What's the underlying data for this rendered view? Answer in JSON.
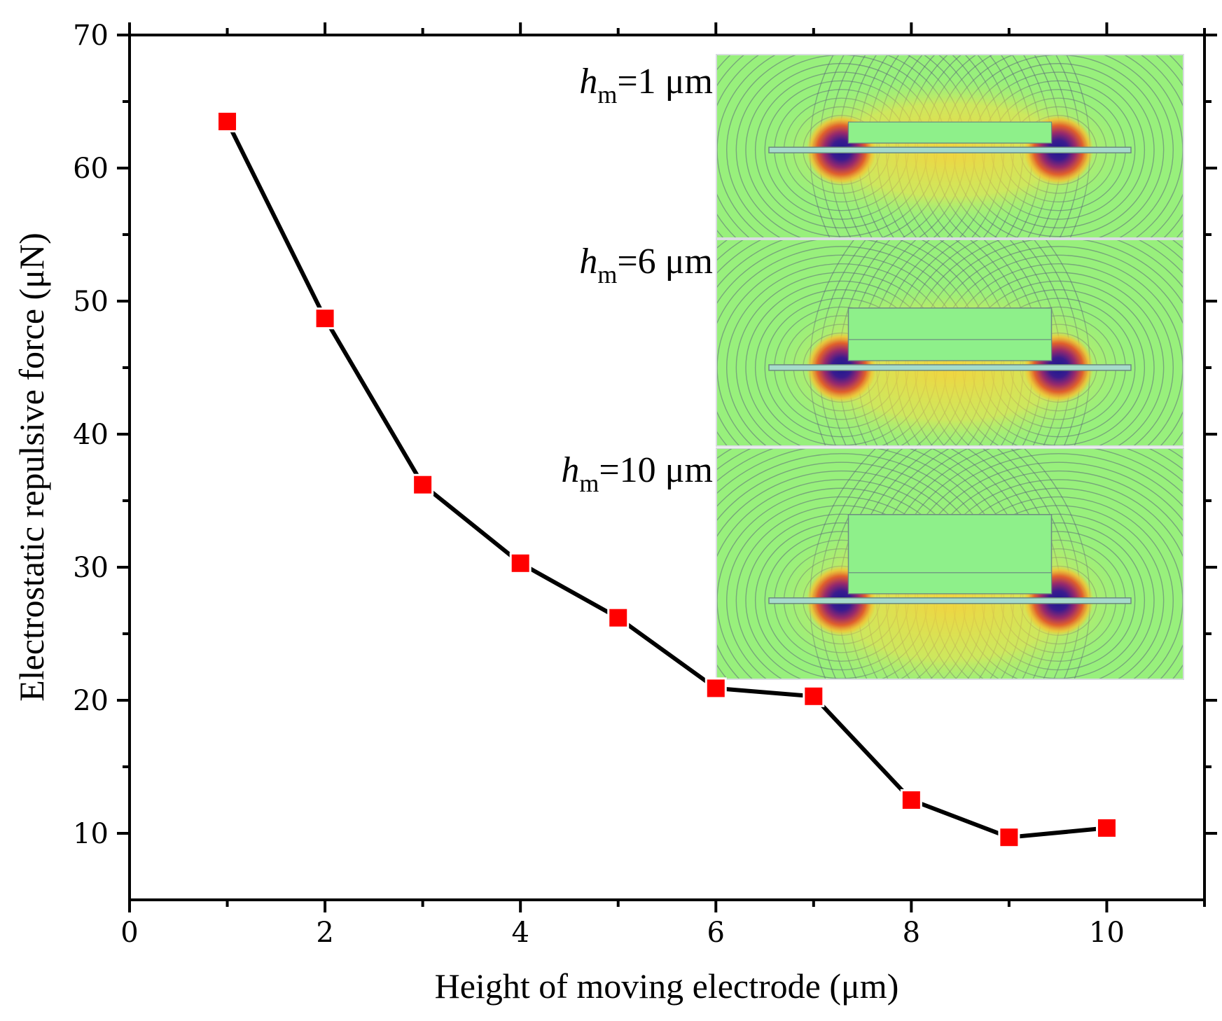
{
  "chart_data": {
    "type": "line",
    "xlabel": "Height of moving electrode (μm)",
    "ylabel": "Electrostatic repulsive force (μN)",
    "xlim": [
      0,
      11
    ],
    "ylim": [
      5,
      70
    ],
    "xticks": [
      0,
      2,
      4,
      6,
      8,
      10
    ],
    "yticks": [
      10,
      20,
      30,
      40,
      50,
      60,
      70
    ],
    "x_minor_ticks": [
      1,
      3,
      5,
      7,
      9,
      11
    ],
    "y_minor_ticks": [
      15,
      25,
      35,
      45,
      55,
      65
    ],
    "grid": false,
    "series": [
      {
        "x": [
          1,
          2,
          3,
          4,
          5,
          6,
          7,
          8,
          9,
          10
        ],
        "y": [
          63.5,
          48.7,
          36.2,
          30.3,
          26.2,
          20.9,
          20.3,
          12.5,
          9.7,
          10.4
        ],
        "line_color": "#000000",
        "marker": "square",
        "marker_color": "#ff0000"
      }
    ]
  },
  "insets": [
    {
      "label_italic": "h",
      "label_sub": "m",
      "label_rest": "=1 μm",
      "electrode_height_um": 1
    },
    {
      "label_italic": "h",
      "label_sub": "m",
      "label_rest": "=6 μm",
      "electrode_height_um": 6
    },
    {
      "label_italic": "h",
      "label_sub": "m",
      "label_rest": "=10 μm",
      "electrode_height_um": 10
    }
  ]
}
